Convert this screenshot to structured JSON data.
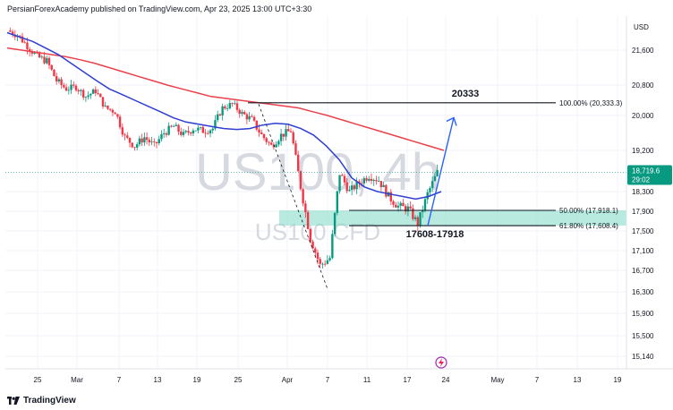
{
  "header": {
    "text": "PersianForexAcademy published on TradingView.com, Apr 23, 2025 13:00 UTC+3:30"
  },
  "currency": "USD",
  "watermark": {
    "symbol": "US100",
    "timeframe": "4h",
    "subtitle": "US100 CFD"
  },
  "footer": {
    "brand": "TradingView"
  },
  "colors": {
    "up": "#089981",
    "down": "#f23645",
    "ma_fast": "#2f3fd1",
    "ma_slow": "#e8414b",
    "zone": "#7fd8c4",
    "arrow": "#2962ff",
    "price_tag": "#089981"
  },
  "chart_data": {
    "type": "candlestick",
    "title": "US100, 4h",
    "x_tick_labels": [
      "25",
      "Mar",
      "7",
      "13",
      "19",
      "25",
      "Apr",
      "7",
      "11",
      "17",
      "24",
      "May",
      "7",
      "13",
      "19"
    ],
    "y_ticks": [
      21600,
      20800,
      20000,
      19200,
      18300,
      17900,
      17500,
      17100,
      16700,
      16300,
      15900,
      15500,
      15140
    ],
    "y_tick_labels": [
      "21,600",
      "20,800",
      "20,000",
      "19,200",
      "18,300",
      "17,900",
      "17,500",
      "17,100",
      "16,700",
      "16,300",
      "15,900",
      "15,500",
      "15,140"
    ],
    "ylim": [
      14950,
      22300
    ],
    "last_price": {
      "value": 18719.6,
      "label": "18,719.6",
      "countdown": "29:02"
    },
    "close_path": [
      {
        "x": "Feb 20",
        "y": 22050
      },
      {
        "x": "Feb 21",
        "y": 21950
      },
      {
        "x": "Feb 24",
        "y": 21700
      },
      {
        "x": "Feb 25",
        "y": 21450
      },
      {
        "x": "Feb 26",
        "y": 21350
      },
      {
        "x": "Feb 27",
        "y": 20900
      },
      {
        "x": "Feb 28",
        "y": 20700
      },
      {
        "x": "Mar 3",
        "y": 20750
      },
      {
        "x": "Mar 4",
        "y": 20500
      },
      {
        "x": "Mar 5",
        "y": 20650
      },
      {
        "x": "Mar 6",
        "y": 20200
      },
      {
        "x": "Mar 7",
        "y": 20100
      },
      {
        "x": "Mar 10",
        "y": 19500
      },
      {
        "x": "Mar 11",
        "y": 19300
      },
      {
        "x": "Mar 12",
        "y": 19500
      },
      {
        "x": "Mar 13",
        "y": 19300
      },
      {
        "x": "Mar 14",
        "y": 19600
      },
      {
        "x": "Mar 17",
        "y": 19750
      },
      {
        "x": "Mar 18",
        "y": 19550
      },
      {
        "x": "Mar 19",
        "y": 19700
      },
      {
        "x": "Mar 20",
        "y": 19650
      },
      {
        "x": "Mar 21",
        "y": 19700
      },
      {
        "x": "Mar 24",
        "y": 20200
      },
      {
        "x": "Mar 25",
        "y": 20300
      },
      {
        "x": "Mar 26",
        "y": 20050
      },
      {
        "x": "Mar 27",
        "y": 19900
      },
      {
        "x": "Mar 28",
        "y": 19550
      },
      {
        "x": "Mar 31",
        "y": 19300
      },
      {
        "x": "Apr 1",
        "y": 19550
      },
      {
        "x": "Apr 2",
        "y": 19650
      },
      {
        "x": "Apr 3",
        "y": 18400
      },
      {
        "x": "Apr 4",
        "y": 17350
      },
      {
        "x": "Apr 7",
        "y": 16800
      },
      {
        "x": "Apr 8",
        "y": 16950
      },
      {
        "x": "Apr 9",
        "y": 18700
      },
      {
        "x": "Apr 10",
        "y": 18300
      },
      {
        "x": "Apr 11",
        "y": 18500
      },
      {
        "x": "Apr 14",
        "y": 18650
      },
      {
        "x": "Apr 15",
        "y": 18550
      },
      {
        "x": "Apr 16",
        "y": 18200
      },
      {
        "x": "Apr 17",
        "y": 18000
      },
      {
        "x": "Apr 18",
        "y": 17950
      },
      {
        "x": "Apr 21",
        "y": 17650
      },
      {
        "x": "Apr 22",
        "y": 18250
      },
      {
        "x": "Apr 23",
        "y": 18720
      }
    ],
    "series": [
      {
        "name": "MA fast",
        "values": [
          22000,
          21900,
          21800,
          21650,
          21500,
          21300,
          21100,
          20900,
          20700,
          20550,
          20400,
          20250,
          20100,
          19950,
          19850,
          19800,
          19750,
          19700,
          19680,
          19700,
          19780,
          19820,
          19800,
          19700,
          19550,
          19300,
          19000,
          18600,
          18400,
          18300,
          18250,
          18200,
          18150,
          18200,
          18300
        ]
      },
      {
        "name": "MA slow",
        "values": [
          21650,
          21600,
          21550,
          21500,
          21450,
          21380,
          21300,
          21200,
          21100,
          21000,
          20900,
          20800,
          20700,
          20600,
          20500,
          20450,
          20400,
          20350,
          20300,
          20250,
          20200,
          20100,
          20000,
          19900,
          19800,
          19700,
          19600,
          19500,
          19400,
          19300,
          19200
        ]
      }
    ],
    "fib_levels": [
      {
        "label": "100.00% (20,333.3)",
        "value": 20333.3
      },
      {
        "label": "50.00% (17,918.1)",
        "value": 17918.1
      },
      {
        "label": "61.80% (17,608.4)",
        "value": 17608.4
      }
    ],
    "annotations": {
      "high_label": "20333",
      "zone_label": "17608-17918"
    }
  }
}
